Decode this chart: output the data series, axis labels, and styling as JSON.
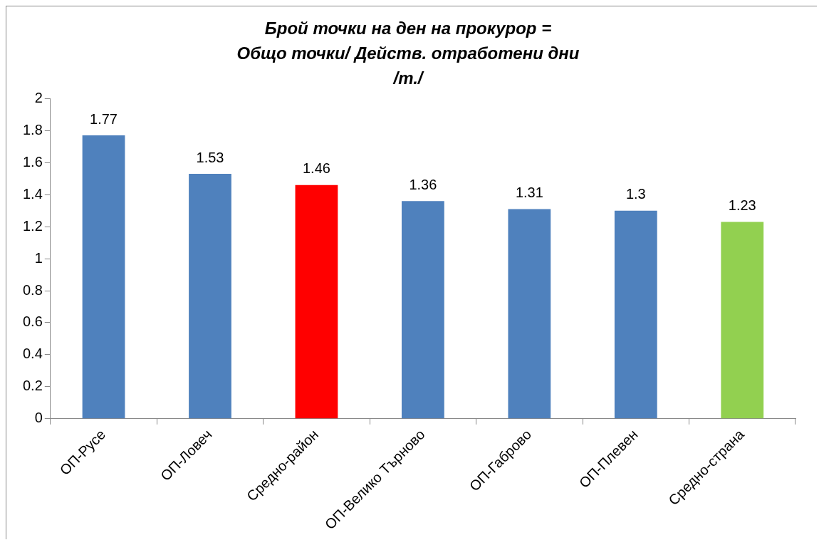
{
  "chart_data": {
    "type": "bar",
    "title": "Брой точки на ден на прокурор =\nОбщо точки/ Действ. отработени дни\n/т./",
    "categories": [
      "ОП-Русе",
      "ОП-Ловеч",
      "Средно-район",
      "ОП-Велико Търново",
      "ОП-Габрово",
      "ОП-Плевен",
      "Средно-страна"
    ],
    "values": [
      1.77,
      1.53,
      1.46,
      1.36,
      1.31,
      1.3,
      1.23
    ],
    "colors": [
      "#4f81bd",
      "#4f81bd",
      "#ff0000",
      "#4f81bd",
      "#4f81bd",
      "#4f81bd",
      "#92d050"
    ],
    "ylim": [
      0,
      2
    ],
    "yticks": [
      0,
      0.2,
      0.4,
      0.6,
      0.8,
      1,
      1.2,
      1.4,
      1.6,
      1.8,
      2
    ],
    "grid": false,
    "legend": false,
    "data_labels": true
  }
}
